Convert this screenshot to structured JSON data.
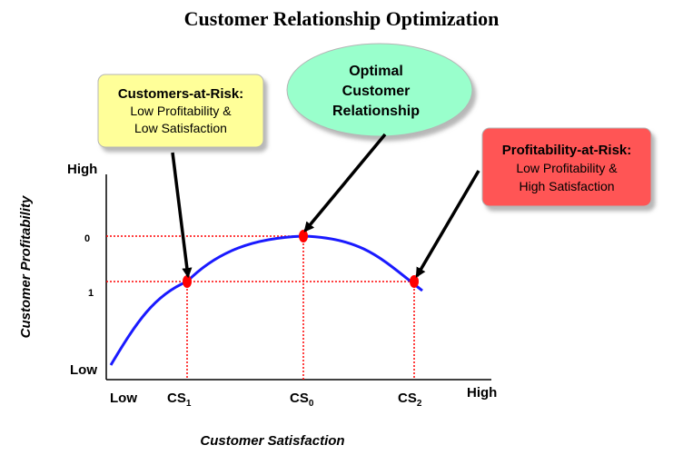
{
  "title": "Customer Relationship Optimization",
  "y_axis": {
    "label": "Customer Profitability",
    "high": "High",
    "low": "Low",
    "tick_0": "0",
    "tick_1": "1"
  },
  "x_axis": {
    "label": "Customer Satisfaction",
    "low": "Low",
    "high": "High",
    "cs1": {
      "main": "CS",
      "sub": "1"
    },
    "cs0": {
      "main": "CS",
      "sub": "0"
    },
    "cs2": {
      "main": "CS",
      "sub": "2"
    }
  },
  "callouts": {
    "customers_at_risk": {
      "title": "Customers-at-Risk:",
      "line1": "Low Profitability &",
      "line2": "Low Satisfaction",
      "fill": "#ffff99"
    },
    "optimal": {
      "line1": "Optimal",
      "line2": "Customer",
      "line3": "Relationship",
      "fill": "#99ffcc"
    },
    "profitability_at_risk": {
      "title": "Profitability-at-Risk:",
      "line1": "Low Profitability &",
      "line2": "High Satisfaction",
      "fill": "#ff5555"
    }
  },
  "colors": {
    "curve": "#1a1aff",
    "guide": "#ff0000",
    "point": "#ff0000",
    "arrow": "#000000"
  }
}
